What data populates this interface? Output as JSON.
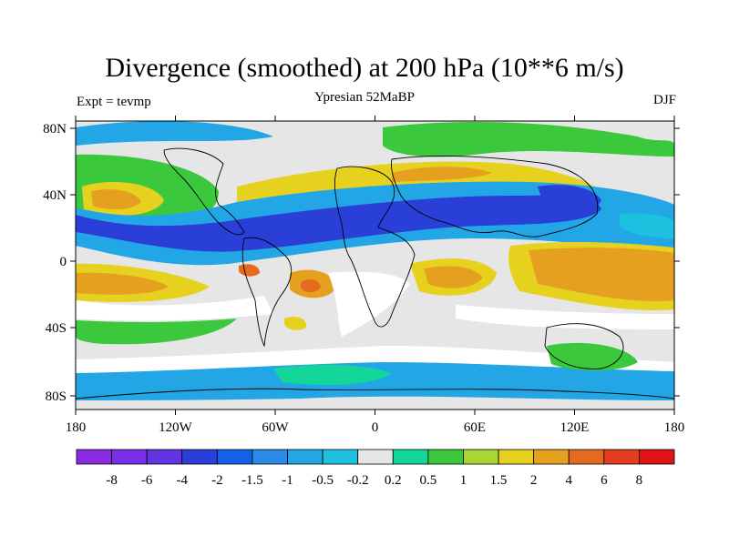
{
  "title": "Divergence (smoothed) at 200 hPa (10**6 m/s)",
  "left_label": "Expt = tevmp",
  "center_label": "Ypresian  52MaBP",
  "right_label": "DJF",
  "lat_ticks": [
    "80N",
    "40N",
    "0",
    "40S",
    "80S"
  ],
  "lon_ticks": [
    "180",
    "120W",
    "60W",
    "0",
    "60E",
    "120E",
    "180"
  ],
  "colorbar": {
    "labels": [
      "-8",
      "-6",
      "-4",
      "-2",
      "-1.5",
      "-1",
      "-0.5",
      "-0.2",
      "0.2",
      "0.5",
      "1",
      "1.5",
      "2",
      "4",
      "6",
      "8"
    ],
    "colors": [
      "#8a2be2",
      "#7a2fe6",
      "#6233e0",
      "#2a3fd8",
      "#1460e8",
      "#2a8ae8",
      "#22a6e6",
      "#1ec0e0",
      "#e6e6e6",
      "#14d69a",
      "#3cc83c",
      "#a8d632",
      "#e6d21e",
      "#e6a020",
      "#e66a1e",
      "#e63c1e",
      "#e01414"
    ]
  },
  "colors": {
    "neutral": "#e6e6e6",
    "deep_blue": "#2a3fd8",
    "mid_blue": "#2a8ae8",
    "light_blue": "#22a6e6",
    "cyan": "#1ec0e0",
    "teal": "#14d69a",
    "green": "#3cc83c",
    "yellow_green": "#a8d632",
    "yellow": "#e6d21e",
    "orange": "#e6a020",
    "red_orange": "#e66a1e",
    "white": "#ffffff"
  }
}
